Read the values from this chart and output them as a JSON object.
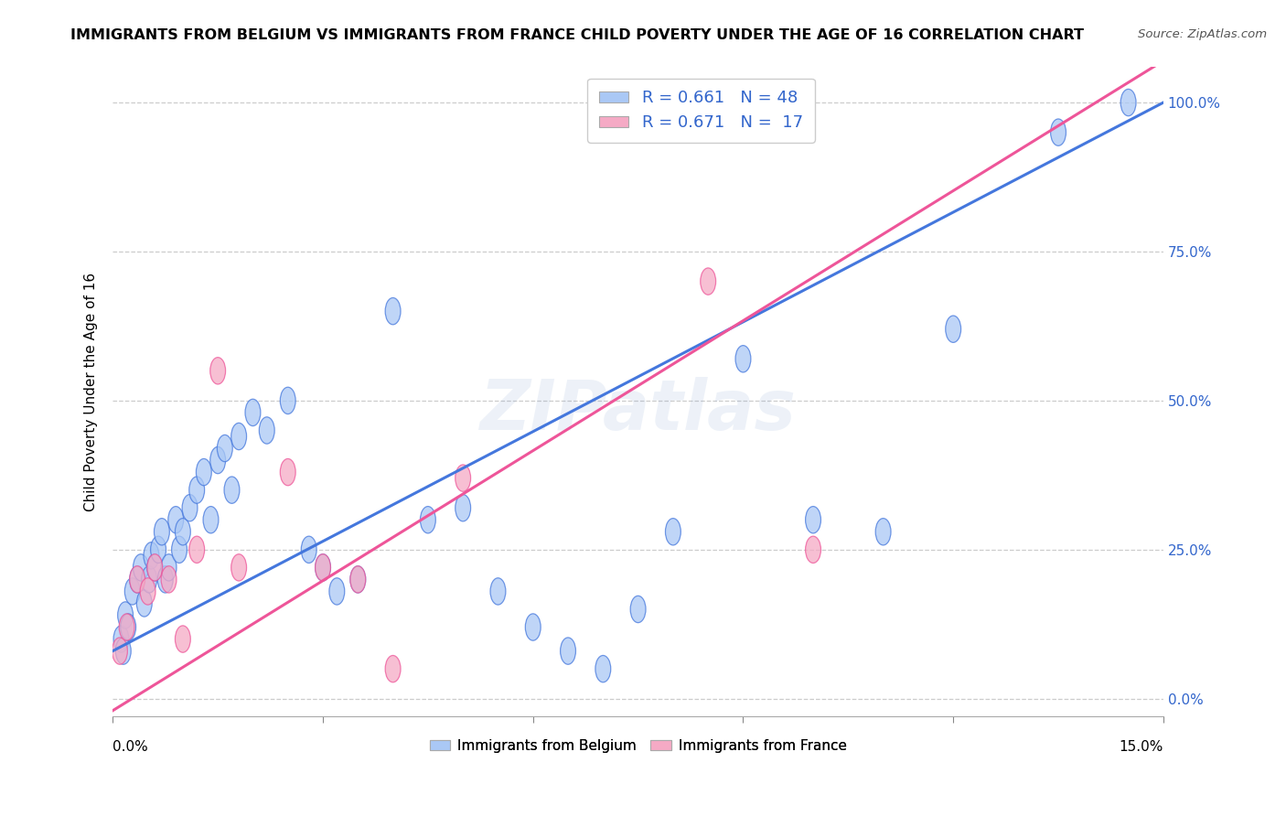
{
  "title": "IMMIGRANTS FROM BELGIUM VS IMMIGRANTS FROM FRANCE CHILD POVERTY UNDER THE AGE OF 16 CORRELATION CHART",
  "source": "Source: ZipAtlas.com",
  "ylabel": "Child Poverty Under the Age of 16",
  "ytick_labels": [
    "0.0%",
    "25.0%",
    "50.0%",
    "75.0%",
    "100.0%"
  ],
  "ytick_values": [
    0,
    25,
    50,
    75,
    100
  ],
  "legend_belgium": "R = 0.661   N = 48",
  "legend_france": "R = 0.671   N =  17",
  "legend_bottom_belgium": "Immigrants from Belgium",
  "legend_bottom_france": "Immigrants from France",
  "watermark": "ZIPatlas",
  "belgium_color": "#aac8f5",
  "france_color": "#f5aac5",
  "belgium_line_color": "#4477dd",
  "france_line_color": "#ee5599",
  "belgium_scatter_x": [
    0.12,
    0.15,
    0.18,
    0.22,
    0.28,
    0.35,
    0.4,
    0.45,
    0.52,
    0.55,
    0.6,
    0.65,
    0.7,
    0.75,
    0.8,
    0.9,
    0.95,
    1.0,
    1.1,
    1.2,
    1.3,
    1.4,
    1.5,
    1.6,
    1.7,
    1.8,
    2.0,
    2.2,
    2.5,
    2.8,
    3.0,
    3.2,
    3.5,
    4.0,
    4.5,
    5.0,
    5.5,
    6.0,
    6.5,
    7.0,
    7.5,
    8.0,
    9.0,
    10.0,
    11.0,
    12.0,
    13.5,
    14.5
  ],
  "belgium_scatter_y": [
    10,
    8,
    14,
    12,
    18,
    20,
    22,
    16,
    20,
    24,
    22,
    25,
    28,
    20,
    22,
    30,
    25,
    28,
    32,
    35,
    38,
    30,
    40,
    42,
    35,
    44,
    48,
    45,
    50,
    25,
    22,
    18,
    20,
    65,
    30,
    32,
    18,
    12,
    8,
    5,
    15,
    28,
    57,
    30,
    28,
    62,
    95,
    100
  ],
  "france_scatter_x": [
    0.1,
    0.2,
    0.35,
    0.5,
    0.6,
    0.8,
    1.0,
    1.2,
    1.5,
    1.8,
    2.5,
    3.0,
    3.5,
    4.0,
    5.0,
    8.5,
    10.0
  ],
  "france_scatter_y": [
    8,
    12,
    20,
    18,
    22,
    20,
    10,
    25,
    55,
    22,
    38,
    22,
    20,
    5,
    37,
    70,
    25
  ],
  "belgium_trend_x": [
    0.0,
    15.0
  ],
  "belgium_trend_y": [
    8.0,
    100.0
  ],
  "france_trend_x": [
    0.0,
    15.0
  ],
  "france_trend_y": [
    -2.0,
    107.0
  ],
  "xlim": [
    0.0,
    15.0
  ],
  "ylim": [
    -3,
    106
  ],
  "title_fontsize": 11.5,
  "source_fontsize": 9.5,
  "watermark_fontsize": 55,
  "watermark_alpha": 0.13,
  "legend_R_color": "#3366cc",
  "legend_N_color": "#ee4444",
  "grid_color": "#cccccc",
  "grid_style": "--",
  "right_tick_color": "#3366cc"
}
